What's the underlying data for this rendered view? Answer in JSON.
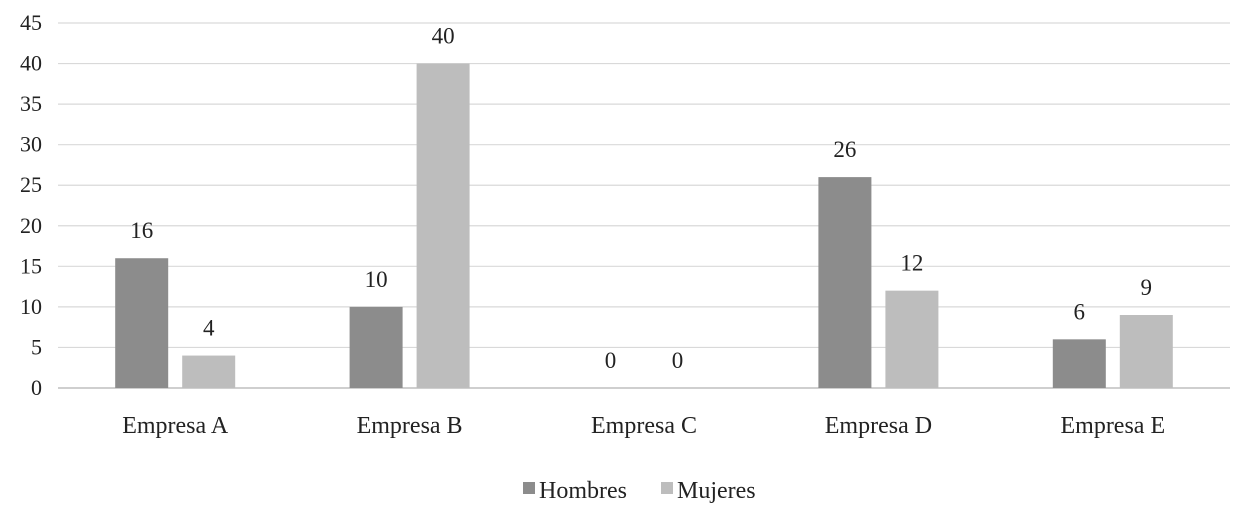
{
  "chart_data": {
    "type": "bar",
    "title": "",
    "xlabel": "",
    "ylabel": "",
    "categories": [
      "Empresa A",
      "Empresa B",
      "Empresa C",
      "Empresa D",
      "Empresa E"
    ],
    "series": [
      {
        "name": "Hombres",
        "values": [
          16,
          10,
          0,
          26,
          6
        ],
        "color": "#8c8c8c"
      },
      {
        "name": "Mujeres",
        "values": [
          4,
          40,
          0,
          12,
          9
        ],
        "color": "#bdbdbd"
      }
    ],
    "ylim": [
      0,
      45
    ],
    "yticks": [
      "0",
      "5",
      "10",
      "15",
      "20",
      "25",
      "30",
      "35",
      "40",
      "45"
    ],
    "grid": true,
    "legend_position": "bottom",
    "data_labels": true
  }
}
